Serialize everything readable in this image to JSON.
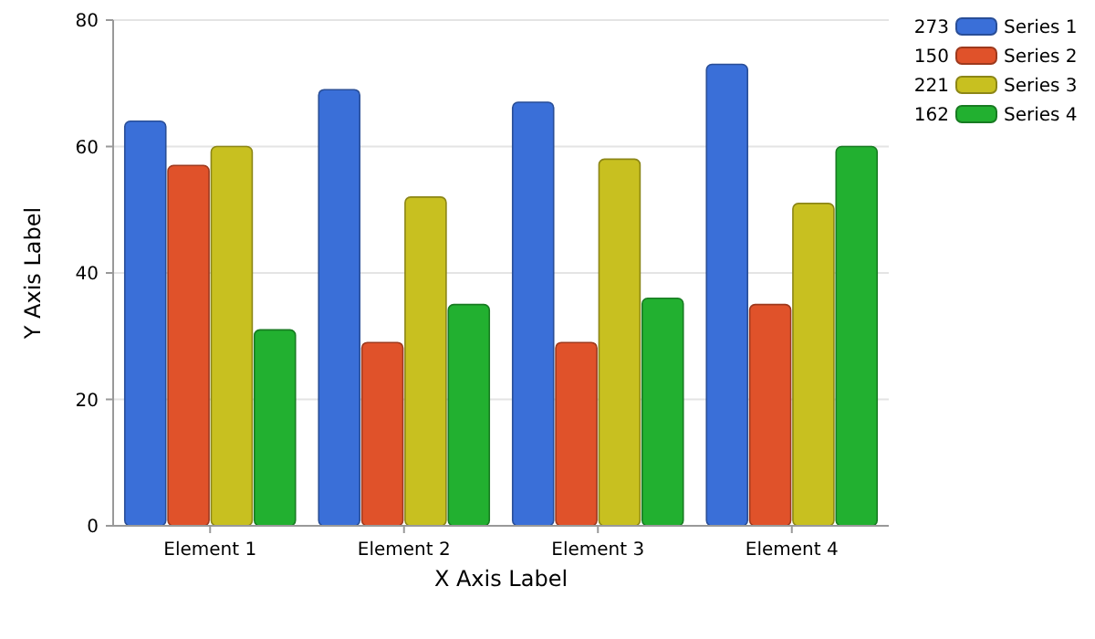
{
  "chart_data": {
    "type": "bar",
    "xlabel": "X Axis Label",
    "ylabel": "Y Axis Label",
    "categories": [
      "Element 1",
      "Element 2",
      "Element 3",
      "Element 4"
    ],
    "series": [
      {
        "name": "Series 1",
        "color": "#3a6fd8",
        "values": [
          64,
          69,
          67,
          73
        ]
      },
      {
        "name": "Series 2",
        "color": "#e0522a",
        "values": [
          57,
          29,
          29,
          35
        ]
      },
      {
        "name": "Series 3",
        "color": "#c8c020",
        "values": [
          60,
          52,
          58,
          51
        ]
      },
      {
        "name": "Series 4",
        "color": "#22b030",
        "values": [
          31,
          35,
          36,
          60
        ]
      }
    ],
    "annotations": [
      "273",
      "150",
      "221",
      "162"
    ],
    "ylim": [
      0,
      80
    ],
    "yticks": [
      0,
      20,
      40,
      60,
      80
    ],
    "grid": "y",
    "legend": "top right"
  }
}
